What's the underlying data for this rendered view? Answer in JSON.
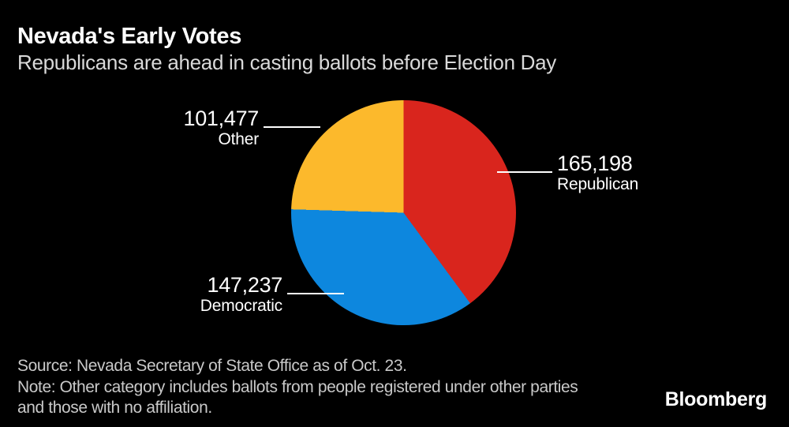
{
  "colors": {
    "background": "#000000",
    "title_text": "#ffffff",
    "subtitle_text": "#d9d9d9",
    "footnote_text": "#c9c9c9",
    "leader_line": "#ffffff",
    "republican": "#d9251d",
    "democratic": "#0d87de",
    "other": "#fcb92c"
  },
  "header": {
    "title": "Nevada's Early Votes",
    "subtitle": "Republicans are ahead in casting ballots before Election Day"
  },
  "chart_data": {
    "type": "pie",
    "title": "Nevada's Early Votes",
    "subtitle": "Republicans are ahead in casting ballots before Election Day",
    "direction": "clockwise",
    "start_angle_deg": 0,
    "total": 413912,
    "slices": [
      {
        "label": "Republican",
        "value": 165198,
        "value_text": "165,198",
        "color": "#d9251d",
        "label_side": "right"
      },
      {
        "label": "Democratic",
        "value": 147237,
        "value_text": "147,237",
        "color": "#0d87de",
        "label_side": "lower-left"
      },
      {
        "label": "Other",
        "value": 101477,
        "value_text": "101,477",
        "color": "#fcb92c",
        "label_side": "upper-left"
      }
    ]
  },
  "footer": {
    "source": "Source: Nevada Secretary of State Office as of Oct. 23.",
    "note_line1": "Note: Other category includes ballots from people registered under other parties",
    "note_line2": "and those with no affiliation.",
    "brand": "Bloomberg"
  }
}
